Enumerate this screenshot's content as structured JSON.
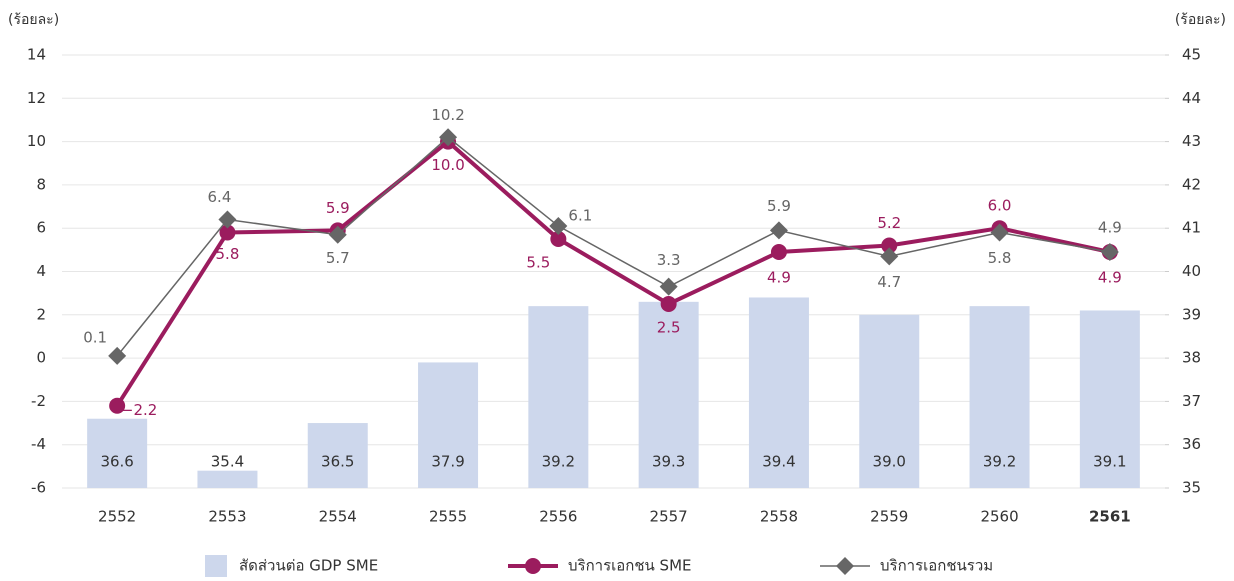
{
  "chart_data": {
    "type": "bar-line",
    "y_label": "(ร้อยละ)",
    "y2_label": "(ร้อยละ)",
    "categories": [
      "2552",
      "2553",
      "2554",
      "2555",
      "2556",
      "2557",
      "2558",
      "2559",
      "2560",
      "2561"
    ],
    "ylim": [
      -6,
      14
    ],
    "yticks": [
      -6,
      -4,
      -2,
      0,
      2,
      4,
      6,
      8,
      10,
      12,
      14
    ],
    "y2lim": [
      35,
      45
    ],
    "y2ticks": [
      35,
      36,
      37,
      38,
      39,
      40,
      41,
      42,
      43,
      44,
      45
    ],
    "grid": true,
    "series": [
      {
        "name": "สัดส่วนต่อ GDP SME",
        "kind": "bar",
        "axis": "y2",
        "color": "#cdd7ec",
        "values": [
          36.6,
          35.4,
          36.5,
          37.9,
          39.2,
          39.3,
          39.4,
          39.0,
          39.2,
          39.1
        ],
        "value_labels": [
          "36.6",
          "35.4",
          "36.5",
          "37.9",
          "39.2",
          "39.3",
          "39.4",
          "39.0",
          "39.2",
          "39.1"
        ]
      },
      {
        "name": "บริการเอกชน SME",
        "kind": "line",
        "marker": "circle",
        "color": "#9b1c5e",
        "values": [
          -2.2,
          5.8,
          5.9,
          10.0,
          5.5,
          2.5,
          4.9,
          5.2,
          6.0,
          4.9
        ],
        "value_labels": [
          "−2.2",
          "5.8",
          "5.9",
          "10.0",
          "5.5",
          "2.5",
          "4.9",
          "5.2",
          "6.0",
          "4.9"
        ]
      },
      {
        "name": "บริการเอกชนรวม",
        "kind": "line",
        "marker": "diamond",
        "color": "#666666",
        "values": [
          0.1,
          6.4,
          5.7,
          10.2,
          6.1,
          3.3,
          5.9,
          4.7,
          5.8,
          4.9
        ],
        "value_labels": [
          "0.1",
          "6.4",
          "5.7",
          "10.2",
          "6.1",
          "3.3",
          "5.9",
          "4.7",
          "5.8",
          "4.9"
        ]
      }
    ]
  }
}
